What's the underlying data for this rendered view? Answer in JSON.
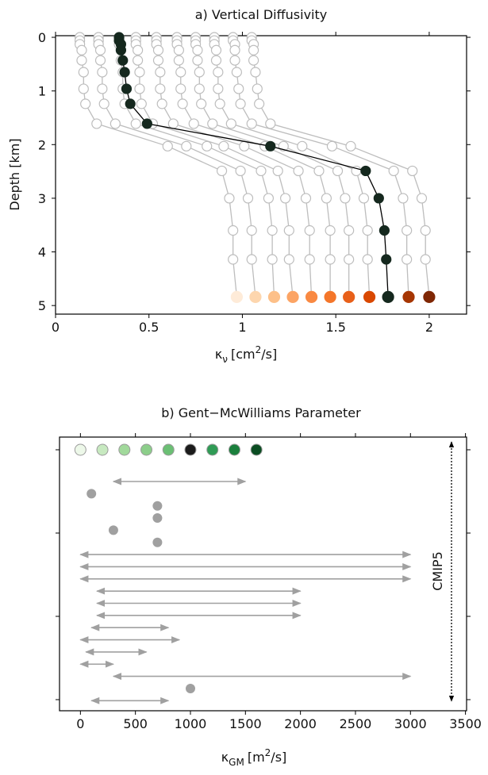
{
  "chart_data": [
    {
      "type": "line",
      "title": "a) Vertical Diffusivity",
      "xlabel": {
        "symbol": "κ",
        "subscript": "ν",
        "unit_pre": "[cm",
        "superscript": "2",
        "unit_post": "/s]"
      },
      "ylabel": "Depth [km]",
      "depth": [
        0,
        0.06,
        0.13,
        0.24,
        0.43,
        0.65,
        0.96,
        1.24,
        1.61,
        2.03,
        2.49,
        3.0,
        3.6,
        4.14,
        4.84
      ],
      "series": [
        {
          "color": "#bdbdbd",
          "marker_fill": "#ffffff",
          "end_color": "#feebd8",
          "values": [
            0.13,
            0.13,
            0.13,
            0.14,
            0.14,
            0.15,
            0.15,
            0.16,
            0.22,
            0.6,
            0.89,
            0.93,
            0.95,
            0.95,
            0.97
          ]
        },
        {
          "color": "#bdbdbd",
          "marker_fill": "#ffffff",
          "end_color": "#fdd6ae",
          "values": [
            0.23,
            0.23,
            0.23,
            0.24,
            0.24,
            0.25,
            0.25,
            0.26,
            0.32,
            0.7,
            0.99,
            1.03,
            1.05,
            1.05,
            1.07
          ]
        },
        {
          "color": "#bdbdbd",
          "marker_fill": "#ffffff",
          "end_color": "#fdc089",
          "values": [
            0.34,
            0.34,
            0.34,
            0.35,
            0.35,
            0.36,
            0.36,
            0.37,
            0.43,
            0.81,
            1.1,
            1.14,
            1.16,
            1.16,
            1.17
          ]
        },
        {
          "color": "#bdbdbd",
          "marker_fill": "#ffffff",
          "end_color": "#fca464",
          "values": [
            0.43,
            0.43,
            0.43,
            0.44,
            0.44,
            0.45,
            0.45,
            0.46,
            0.52,
            0.9,
            1.19,
            1.23,
            1.25,
            1.25,
            1.27
          ]
        },
        {
          "color": "#bdbdbd",
          "marker_fill": "#ffffff",
          "end_color": "#f98942",
          "values": [
            0.54,
            0.54,
            0.54,
            0.55,
            0.55,
            0.56,
            0.56,
            0.57,
            0.63,
            1.01,
            1.3,
            1.34,
            1.36,
            1.36,
            1.37
          ]
        },
        {
          "color": "#bdbdbd",
          "marker_fill": "#ffffff",
          "end_color": "#f4762a",
          "values": [
            0.65,
            0.65,
            0.65,
            0.66,
            0.66,
            0.67,
            0.67,
            0.68,
            0.74,
            1.12,
            1.41,
            1.45,
            1.47,
            1.47,
            1.47
          ]
        },
        {
          "color": "#bdbdbd",
          "marker_fill": "#ffffff",
          "end_color": "#e8601a",
          "values": [
            0.75,
            0.75,
            0.75,
            0.76,
            0.76,
            0.77,
            0.77,
            0.78,
            0.84,
            1.22,
            1.51,
            1.55,
            1.57,
            1.57,
            1.57
          ]
        },
        {
          "color": "#bdbdbd",
          "marker_fill": "#ffffff",
          "end_color": "#d94801",
          "values": [
            0.85,
            0.85,
            0.85,
            0.86,
            0.86,
            0.87,
            0.87,
            0.88,
            0.94,
            1.32,
            1.61,
            1.65,
            1.67,
            1.67,
            1.68
          ]
        },
        {
          "color": "#bdbdbd",
          "marker_fill": "#ffffff",
          "end_color": "#a63603",
          "values": [
            0.95,
            0.95,
            0.96,
            0.96,
            0.96,
            0.97,
            0.98,
            0.99,
            1.05,
            1.48,
            1.81,
            1.86,
            1.88,
            1.88,
            1.89
          ]
        },
        {
          "color": "#bdbdbd",
          "marker_fill": "#ffffff",
          "end_color": "#7f2704",
          "values": [
            1.05,
            1.05,
            1.06,
            1.06,
            1.06,
            1.07,
            1.08,
            1.09,
            1.15,
            1.58,
            1.91,
            1.96,
            1.98,
            1.98,
            2.0
          ]
        },
        {
          "color": "#000000",
          "marker_fill": "#15281e",
          "end_color": "#15281e",
          "values": [
            0.34,
            0.34,
            0.35,
            0.35,
            0.36,
            0.37,
            0.38,
            0.4,
            0.49,
            1.15,
            1.66,
            1.73,
            1.76,
            1.77,
            1.78
          ]
        }
      ],
      "xlim": [
        0,
        2.2
      ],
      "xticks": [
        0,
        0.5,
        1,
        1.5,
        2
      ],
      "ylim": [
        5.16,
        -0.03
      ],
      "yticks": [
        0,
        1,
        2,
        3,
        4,
        5
      ]
    },
    {
      "type": "range",
      "title": "b) Gent−McWilliams Parameter",
      "xlabel": {
        "symbol": "κ",
        "subscript": "GM",
        "unit_pre": "[m",
        "superscript": "2",
        "unit_post": "/s]"
      },
      "experiments": {
        "values": [
          0,
          200,
          400,
          600,
          800,
          1000,
          1200,
          1400,
          1600
        ],
        "colors": [
          "#edf8e9",
          "#c7e9c0",
          "#a1d99b",
          "#8cce8a",
          "#6bbf74",
          "#1b1b1b",
          "#2f9b55",
          "#1a7f3c",
          "#0b4d22"
        ]
      },
      "range_color": "#a0a0a0",
      "ranges": [
        {
          "low": 300,
          "high": 1500
        },
        {
          "value": 100
        },
        {
          "value": 700
        },
        {
          "value": 700
        },
        {
          "value": 300
        },
        {
          "value": 700
        },
        {
          "low": 0,
          "high": 3000
        },
        {
          "low": 0,
          "high": 3000
        },
        {
          "low": 0,
          "high": 3000
        },
        {
          "low": 150,
          "high": 2000
        },
        {
          "low": 150,
          "high": 2000
        },
        {
          "low": 150,
          "high": 2000
        },
        {
          "low": 100,
          "high": 800
        },
        {
          "low": 0,
          "high": 900
        },
        {
          "low": 50,
          "high": 600
        },
        {
          "low": 0,
          "high": 300
        },
        {
          "low": 300,
          "high": 3000
        },
        {
          "value": 1000
        },
        {
          "low": 100,
          "high": 800
        }
      ],
      "bracket_label": "CMIP5",
      "xlim": [
        -190,
        3510
      ],
      "xticks": [
        0,
        500,
        1000,
        1500,
        2000,
        2500,
        3000,
        3500
      ]
    }
  ]
}
